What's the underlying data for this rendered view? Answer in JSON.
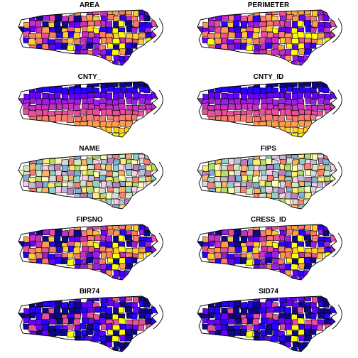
{
  "panels": [
    {
      "title": "AREA",
      "palette": "sequential-plasma"
    },
    {
      "title": "PERIMETER",
      "palette": "sequential-plasma"
    },
    {
      "title": "CNTY_",
      "palette": "sequential-plasma"
    },
    {
      "title": "CNTY_ID",
      "palette": "sequential-plasma"
    },
    {
      "title": "NAME",
      "palette": "qualitative-pastel"
    },
    {
      "title": "FIPS",
      "palette": "qualitative-pastel"
    },
    {
      "title": "FIPSNO",
      "palette": "sequential-plasma"
    },
    {
      "title": "CRESS_ID",
      "palette": "sequential-plasma"
    },
    {
      "title": "BIR74",
      "palette": "sequential-plasma"
    },
    {
      "title": "SID74",
      "palette": "sequential-plasma"
    }
  ],
  "colors": {
    "plasma": [
      "#0d0887",
      "#2a00ff",
      "#6a00ff",
      "#9c1fe0",
      "#c92fc0",
      "#ea4f9c",
      "#fa7a6e",
      "#ff9e4a",
      "#ffcc33",
      "#ffff00"
    ],
    "pastel": [
      "#8dd3c7",
      "#ffffb3",
      "#bebada",
      "#fb8072",
      "#80b1d3",
      "#fdb462",
      "#b3de69",
      "#fccde5",
      "#d9d9d9",
      "#bc80bd",
      "#ccebc5",
      "#ffed6f"
    ],
    "outline": "#000000"
  }
}
